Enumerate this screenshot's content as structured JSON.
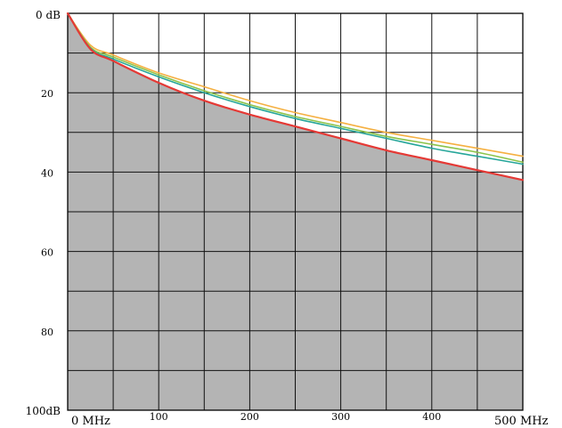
{
  "chart_data": {
    "type": "line",
    "title": "",
    "xlabel": "",
    "ylabel": "",
    "x_unit": "MHz",
    "y_unit": "dB",
    "xlim": [
      0,
      500
    ],
    "ylim": [
      0,
      100
    ],
    "y_inverted": true,
    "grid": true,
    "shaded_below": "red",
    "x_ticks": [
      "0 MHz",
      "100",
      "200",
      "300",
      "400",
      "500 MHz"
    ],
    "y_ticks": [
      "0 dB",
      "20",
      "40",
      "60",
      "80",
      "100dB"
    ],
    "series": [
      {
        "color": "#f5b041",
        "x": [
          0,
          25,
          50,
          100,
          150,
          200,
          250,
          300,
          350,
          400,
          450,
          500
        ],
        "y": [
          0,
          8,
          10.5,
          15,
          18.5,
          22,
          25,
          27.5,
          30,
          32,
          34,
          36
        ]
      },
      {
        "color": "#8bc34a",
        "x": [
          0,
          25,
          50,
          100,
          150,
          200,
          250,
          300,
          350,
          400,
          450,
          500
        ],
        "y": [
          0,
          8.5,
          11,
          15.5,
          19.5,
          23,
          26,
          28.5,
          31,
          33,
          35,
          37.5
        ]
      },
      {
        "color": "#26a69a",
        "x": [
          0,
          25,
          50,
          100,
          150,
          200,
          250,
          300,
          350,
          400,
          450,
          500
        ],
        "y": [
          0,
          8.8,
          11.5,
          16,
          20,
          23.5,
          26.5,
          29,
          31.5,
          34,
          36,
          38
        ]
      },
      {
        "color": "#e53935",
        "x": [
          0,
          25,
          50,
          100,
          150,
          200,
          250,
          300,
          350,
          400,
          450,
          500
        ],
        "y": [
          0,
          9,
          12,
          17.5,
          22,
          25.5,
          28.5,
          31.5,
          34.5,
          37,
          39.5,
          42
        ]
      }
    ]
  }
}
